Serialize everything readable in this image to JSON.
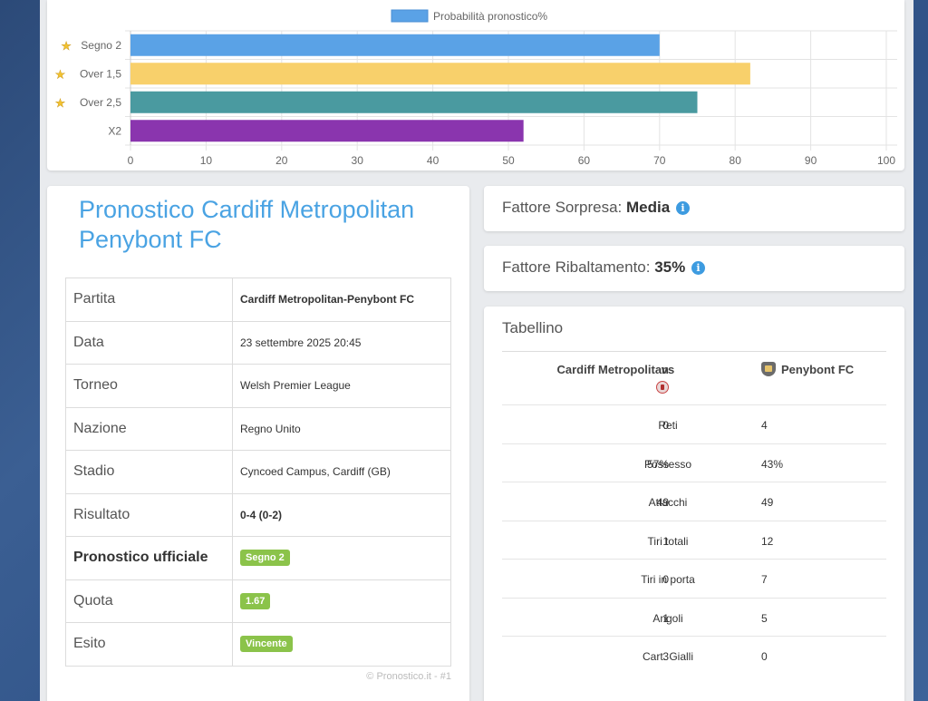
{
  "chart_data": {
    "type": "bar",
    "orientation": "horizontal",
    "legend": "Probabilità pronostico%",
    "legend_position": "top",
    "categories": [
      "Segno 2",
      "Over 1,5",
      "Over 2,5",
      "X2"
    ],
    "starred": [
      true,
      true,
      true,
      false
    ],
    "values": [
      70,
      82,
      75,
      52
    ],
    "colors": [
      "#5aa2e6",
      "#f8d06b",
      "#4a9aa0",
      "#8a35ae"
    ],
    "legend_color": "#5aa2e6",
    "xlim": [
      0,
      100
    ],
    "xticks": [
      "0",
      "10",
      "20",
      "30",
      "40",
      "50",
      "60",
      "70",
      "80",
      "90",
      "100"
    ],
    "grid": true
  },
  "info": {
    "title": "Pronostico Cardiff Metropolitan Penybont FC",
    "rows": [
      {
        "key": "Partita",
        "value": "Cardiff Metropolitan-Penybont FC"
      },
      {
        "key": "Data",
        "value": "23 settembre 2025 20:45"
      },
      {
        "key": "Torneo",
        "value": "Welsh Premier League"
      },
      {
        "key": "Nazione",
        "value": "Regno Unito"
      },
      {
        "key": "Stadio",
        "value": "Cyncoed Campus, Cardiff (GB)"
      },
      {
        "key": "Risultato",
        "value": "0-4 (0-2)"
      },
      {
        "key": "Pronostico ufficiale",
        "value": "Segno 2"
      },
      {
        "key": "Quota",
        "value": "1.67"
      },
      {
        "key": "Esito",
        "value": "Vincente"
      }
    ],
    "copyright": "© Pronostico.it - #1"
  },
  "surprise": {
    "label": "Fattore Sorpresa:",
    "value": "Media"
  },
  "reversal": {
    "label": "Fattore Ribaltamento:",
    "value": "35%"
  },
  "tabellino": {
    "title": "Tabellino",
    "home": "Cardiff Metropolitan",
    "vs": "vs",
    "away": "Penybont FC",
    "rows": [
      {
        "home": "0",
        "stat": "Reti",
        "away": "4"
      },
      {
        "home": "57%",
        "stat": "Possesso",
        "away": "43%"
      },
      {
        "home": "49",
        "stat": "Attacchi",
        "away": "49"
      },
      {
        "home": "1",
        "stat": "Tiri totali",
        "away": "12"
      },
      {
        "home": "0",
        "stat": "Tiri in porta",
        "away": "7"
      },
      {
        "home": "1",
        "stat": "Angoli",
        "away": "5"
      },
      {
        "home": "3",
        "stat": "Cart. Gialli",
        "away": "0"
      }
    ]
  },
  "icons": {
    "info": "info-icon",
    "star": "star-icon"
  }
}
